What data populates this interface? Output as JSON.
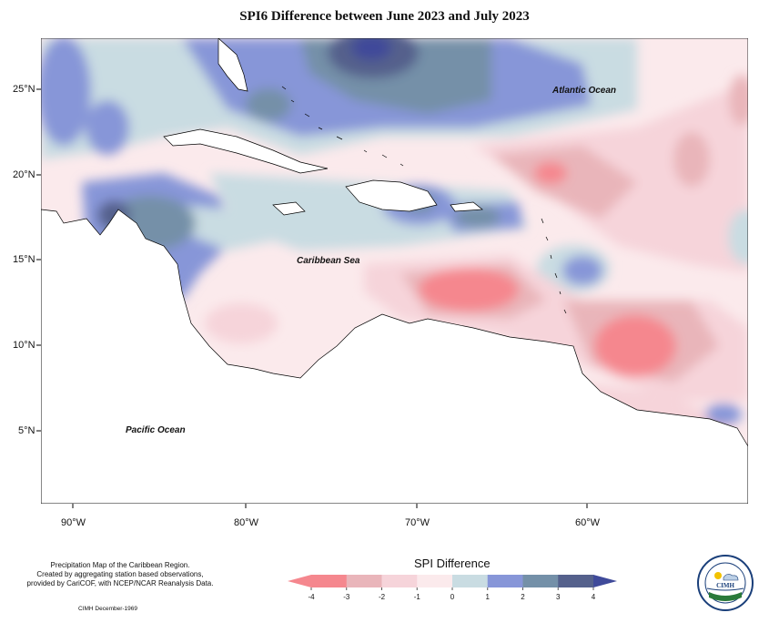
{
  "title": "SPI6 Difference between June 2023 and July 2023",
  "map": {
    "lat_labels": [
      "25°N",
      "20°N",
      "15°N",
      "10°N",
      "5°N"
    ],
    "lon_labels": [
      "90°W",
      "80°W",
      "70°W",
      "60°W"
    ],
    "ocean_labels": {
      "atlantic": "Atlantic Ocean",
      "caribbean": "Caribbean Sea",
      "pacific": "Pacific Ocean"
    }
  },
  "credit": {
    "line1": "Precipitation Map of the Caribbean Region.",
    "line2": "Created by aggregating station based observations,",
    "line3": "provided by CariCOF, with NCEP/NCAR Reanalysis Data.",
    "date": "CIMH December-1969"
  },
  "legend": {
    "title": "SPI Difference",
    "ticks": [
      "-4",
      "-3",
      "-2",
      "-1",
      "0",
      "1",
      "2",
      "3",
      "4"
    ],
    "colors": [
      "#f5878e",
      "#e9b5ba",
      "#f6d4da",
      "#fbeaec",
      "#c9dce2",
      "#8796d8",
      "#7490a8",
      "#55618c"
    ],
    "end_low": "#f5878e",
    "end_high": "#3f4a9a"
  },
  "logo": {
    "name": "CIMH"
  }
}
